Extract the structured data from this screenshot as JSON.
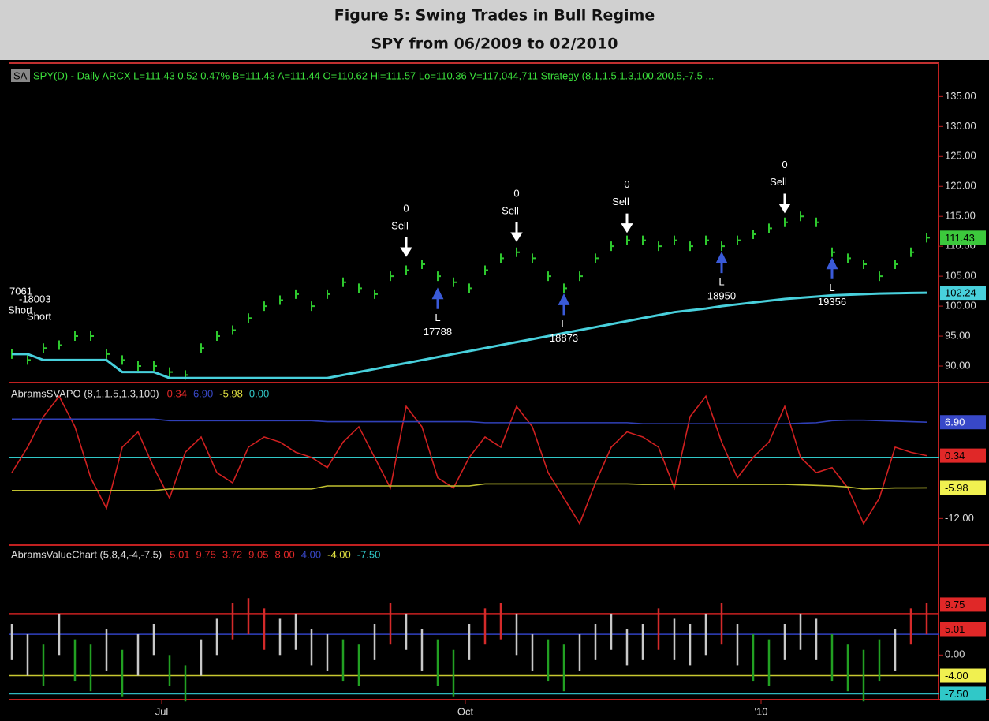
{
  "header": {
    "title": "Figure 5: Swing Trades in Bull Regime",
    "subtitle": "SPY from 06/2009 to 02/2010"
  },
  "chart_data": [
    {
      "type": "price",
      "symbol": "SA",
      "title": "SPY(D) - Daily ARCX L=111.43 0.52 0.47% B=111.43 A=111.44 O=110.62 Hi=111.57 Lo=110.36 V=117,044,711 Strategy (8,1,1.5,1.3,100,200,5,-7.5 ...",
      "ylim": [
        87.5,
        139
      ],
      "yticks": [
        {
          "value": 90,
          "label": "90.00"
        },
        {
          "value": 95,
          "label": "95.00"
        },
        {
          "value": 100,
          "label": "100.00"
        },
        {
          "value": 105,
          "label": "105.00"
        },
        {
          "value": 110,
          "label": "110.00"
        },
        {
          "value": 115,
          "label": "115.00"
        },
        {
          "value": 120,
          "label": "120.00"
        },
        {
          "value": 125,
          "label": "125.00"
        },
        {
          "value": 130,
          "label": "130.00"
        },
        {
          "value": 135,
          "label": "135.00"
        }
      ],
      "series": [
        {
          "color": "#2ec82e",
          "style": "bars",
          "values": [
            92,
            91,
            93,
            93.5,
            95,
            95,
            92,
            91,
            90,
            90,
            89,
            88.5,
            93,
            95,
            96,
            98,
            100,
            101,
            102,
            100,
            102,
            104,
            103,
            102,
            105,
            106,
            107,
            105,
            104,
            103,
            106,
            108,
            109,
            108,
            105,
            103,
            105,
            108,
            110,
            111,
            111,
            110,
            111,
            110,
            111,
            110,
            111,
            112,
            113,
            114,
            115,
            114,
            109,
            108,
            107,
            105,
            107,
            109,
            111.43
          ]
        },
        {
          "color": "#48d0dc",
          "style": "line",
          "values": [
            92,
            92,
            91,
            91,
            91,
            91,
            91,
            89,
            89,
            89,
            88,
            88,
            88,
            88,
            88,
            88,
            88,
            88,
            88,
            88,
            88,
            88.5,
            89,
            89.5,
            90,
            90.5,
            91,
            91.5,
            92,
            92.5,
            93,
            93.5,
            94,
            94.5,
            95,
            95.5,
            96,
            96.5,
            97,
            97.5,
            98,
            98.5,
            99,
            99.3,
            99.6,
            100,
            100.3,
            100.6,
            100.9,
            101.2,
            101.4,
            101.6,
            101.8,
            101.9,
            102,
            102.1,
            102.15,
            102.2,
            102.24
          ]
        }
      ],
      "boxes": [
        {
          "value": 111.43,
          "label": "111.43",
          "color": "#3cc83c"
        },
        {
          "value": 102.24,
          "label": "102.24",
          "color": "#48d0dc"
        }
      ],
      "signals": [
        {
          "x": 25,
          "value": 107,
          "count": "0",
          "action": "Sell"
        },
        {
          "x": 32,
          "value": 109.5,
          "count": "0",
          "action": "Sell"
        },
        {
          "x": 39,
          "value": 111,
          "count": "0",
          "action": "Sell"
        },
        {
          "x": 49,
          "value": 114.3,
          "count": "0",
          "action": "Sell"
        }
      ],
      "entries": [
        {
          "x": 27,
          "value": 104,
          "side": "L",
          "id": "17788"
        },
        {
          "x": 35,
          "value": 103,
          "side": "L",
          "id": "18873"
        },
        {
          "x": 45,
          "value": 110,
          "side": "L",
          "id": "18950"
        },
        {
          "x": 52,
          "value": 109,
          "side": "L",
          "id": "19356"
        }
      ],
      "annotations": [
        "7061",
        "-18003",
        "Short",
        "Short"
      ]
    },
    {
      "type": "oscillator",
      "title": "AbramsSVAPO (8,1,1.5,1.3,100)",
      "legend": [
        {
          "label": "0.34",
          "color": "#e02828"
        },
        {
          "label": "6.90",
          "color": "#3848c8"
        },
        {
          "label": "-5.98",
          "color": "#e0e040"
        },
        {
          "label": "0.00",
          "color": "#30c8c8"
        }
      ],
      "ylim": [
        -16.9,
        13.9
      ],
      "yticks": [
        {
          "value": -12,
          "label": "-12.00"
        }
      ],
      "series": [
        {
          "color": "#d02020",
          "values": [
            -3,
            2,
            8,
            12,
            6,
            -4,
            -10,
            2,
            5,
            -2,
            -8,
            1,
            4,
            -3,
            -5,
            2,
            4,
            3,
            1,
            0,
            -2,
            3,
            6,
            0,
            -6,
            10,
            6,
            -4,
            -6,
            0,
            4,
            2,
            10,
            6,
            -3,
            -8,
            -13,
            -5,
            2,
            5,
            4,
            2,
            -6,
            8,
            12,
            3,
            -4,
            0,
            3,
            10,
            0,
            -3,
            -2,
            -6,
            -13,
            -8,
            2,
            1,
            0.34
          ]
        },
        {
          "color": "#3040b8",
          "values": [
            7.5,
            7.5,
            7.5,
            7.5,
            7.5,
            7.5,
            7.5,
            7.5,
            7.5,
            7.5,
            7.2,
            7.2,
            7.2,
            7.2,
            7.2,
            7.2,
            7.2,
            7.2,
            7.2,
            7.2,
            7,
            7,
            7,
            7,
            7,
            7,
            7,
            7,
            7,
            7,
            6.8,
            6.8,
            6.8,
            6.8,
            6.8,
            6.8,
            6.8,
            6.8,
            6.8,
            6.8,
            6.6,
            6.6,
            6.6,
            6.6,
            6.6,
            6.6,
            6.6,
            6.6,
            6.6,
            6.6,
            6.7,
            6.8,
            7.2,
            7.3,
            7.3,
            7.2,
            7.1,
            7,
            6.9
          ]
        },
        {
          "color": "#c0c030",
          "values": [
            -6.5,
            -6.5,
            -6.5,
            -6.5,
            -6.5,
            -6.5,
            -6.5,
            -6.5,
            -6.5,
            -6.5,
            -6.2,
            -6.2,
            -6.2,
            -6.2,
            -6.2,
            -6.2,
            -6.2,
            -6.2,
            -6.2,
            -6.2,
            -5.6,
            -5.6,
            -5.6,
            -5.6,
            -5.6,
            -5.6,
            -5.6,
            -5.6,
            -5.6,
            -5.6,
            -5.2,
            -5.2,
            -5.2,
            -5.2,
            -5.2,
            -5.2,
            -5.2,
            -5.2,
            -5.2,
            -5.2,
            -5.3,
            -5.3,
            -5.3,
            -5.3,
            -5.3,
            -5.3,
            -5.3,
            -5.3,
            -5.3,
            -5.3,
            -5.4,
            -5.5,
            -5.6,
            -5.8,
            -6.2,
            -6.1,
            -6,
            -6,
            -5.98
          ]
        }
      ],
      "levels": [
        {
          "value": 0,
          "color": "#30c8c8"
        }
      ],
      "boxes": [
        {
          "value": 6.9,
          "label": "6.90",
          "color": "#3848c8"
        },
        {
          "value": 0.34,
          "label": "0.34",
          "color": "#e02828"
        },
        {
          "value": -5.98,
          "label": "-5.98",
          "color": "#f0f050"
        }
      ]
    },
    {
      "type": "value_chart",
      "title": "AbramsValueChart (5,8,4,-4,-7.5)",
      "legend": [
        {
          "label": "5.01",
          "color": "#e02828"
        },
        {
          "label": "9.75",
          "color": "#e02828"
        },
        {
          "label": "3.72",
          "color": "#e02828"
        },
        {
          "label": "9.05",
          "color": "#e02828"
        },
        {
          "label": "8.00",
          "color": "#e02828"
        },
        {
          "label": "4.00",
          "color": "#3848c8"
        },
        {
          "label": "-4.00",
          "color": "#e0e040"
        },
        {
          "label": "-7.50",
          "color": "#30c8c8"
        }
      ],
      "ylim": [
        -8.5,
        20.5
      ],
      "yticks": [
        {
          "value": 0,
          "label": "0.00"
        }
      ],
      "highs": [
        6,
        4,
        2,
        8,
        3,
        2,
        5,
        1,
        4,
        6,
        0,
        -2,
        3,
        7,
        10,
        11,
        9,
        7,
        8,
        5,
        4,
        3,
        2,
        6,
        10,
        8,
        5,
        3,
        1,
        6,
        9,
        10,
        8,
        4,
        3,
        2,
        4,
        6,
        8,
        5,
        6,
        9,
        7,
        6,
        8,
        10,
        6,
        4,
        3,
        6,
        8,
        7,
        4,
        2,
        1,
        3,
        5,
        9,
        10
      ],
      "lows": [
        -1,
        -4,
        -6,
        0,
        -5,
        -7,
        -3,
        -8,
        -4,
        0,
        -6,
        -9,
        -4,
        0,
        3,
        4,
        1,
        0,
        1,
        -2,
        -3,
        -5,
        -6,
        -1,
        2,
        1,
        -3,
        -6,
        -8,
        -1,
        2,
        3,
        0,
        -3,
        -5,
        -7,
        -3,
        -1,
        1,
        -2,
        -1,
        1,
        -1,
        -2,
        0,
        2,
        -2,
        -5,
        -6,
        -1,
        1,
        -1,
        -5,
        -7,
        -9,
        -5,
        -3,
        2,
        4
      ],
      "bar_colors": {
        "up": "#d42a2a",
        "mid": "#c8c8c8",
        "down": "#22a022"
      },
      "levels": [
        {
          "value": 8,
          "color": "#c82020"
        },
        {
          "value": 4,
          "color": "#3040c0"
        },
        {
          "value": -4,
          "color": "#c8c830"
        },
        {
          "value": -7.5,
          "color": "#30b8c0"
        }
      ],
      "boxes": [
        {
          "value": 9.75,
          "label": "9.75",
          "color": "#e02828"
        },
        {
          "value": 5.01,
          "label": "5.01",
          "color": "#e02828"
        },
        {
          "value": -4,
          "label": "-4.00",
          "color": "#f0f050"
        },
        {
          "value": -7.5,
          "label": "-7.50",
          "color": "#30c8c8"
        }
      ],
      "xlim": [
        0,
        58
      ],
      "xticks": [
        {
          "value": 9.5,
          "label": "Jul"
        },
        {
          "value": 28.75,
          "label": "Oct"
        },
        {
          "value": 47.5,
          "label": "'10"
        }
      ]
    }
  ]
}
